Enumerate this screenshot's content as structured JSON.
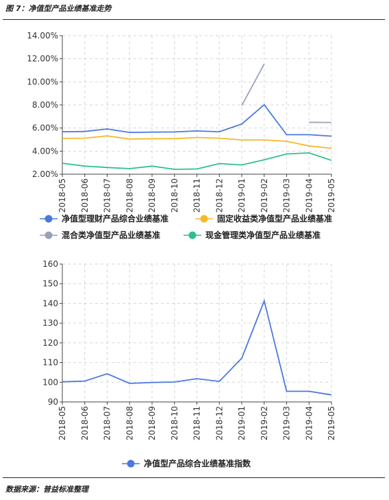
{
  "figure_title": "图 7：净值型产品业绩基准走势",
  "source_text": "数据来源：普益标准整理",
  "chart_data": [
    {
      "type": "line",
      "x": [
        "2018-05",
        "2018-06",
        "2018-07",
        "2018-08",
        "2018-09",
        "2018-10",
        "2018-11",
        "2018-12",
        "2019-01",
        "2019-02",
        "2019-03",
        "2019-04",
        "2019-05"
      ],
      "ylim": [
        2,
        14
      ],
      "yticks": [
        2,
        4,
        6,
        8,
        10,
        12,
        14
      ],
      "ytick_labels": [
        "2.00%",
        "4.00%",
        "6.00%",
        "8.00%",
        "10.00%",
        "12.00%",
        "14.00%"
      ],
      "grid": true,
      "legend_position": "bottom",
      "series": [
        {
          "name": "净值型理财产品综合业绩基准",
          "color": "#4a78e0",
          "values": [
            5.68,
            5.7,
            5.92,
            5.62,
            5.65,
            5.66,
            5.75,
            5.68,
            6.35,
            8.02,
            5.42,
            5.42,
            5.3
          ]
        },
        {
          "name": "固定收益类净值型产品业绩基准",
          "color": "#f7b92a",
          "values": [
            5.1,
            5.12,
            5.32,
            5.05,
            5.07,
            5.08,
            5.18,
            5.12,
            4.97,
            4.97,
            4.85,
            4.45,
            4.25
          ]
        },
        {
          "name": "混合类净值型产品业绩基准",
          "color": "#9aa3b5",
          "values": [
            null,
            null,
            null,
            null,
            null,
            null,
            null,
            null,
            7.95,
            11.55,
            null,
            6.5,
            6.48
          ]
        },
        {
          "name": "现金管理类净值型产品业绩基准",
          "color": "#2cc18f",
          "values": [
            2.95,
            2.7,
            2.58,
            2.48,
            2.7,
            2.42,
            2.45,
            2.92,
            2.8,
            3.25,
            3.75,
            3.85,
            3.2
          ]
        }
      ]
    },
    {
      "type": "line",
      "x": [
        "2018-05",
        "2018-06",
        "2018-07",
        "2018-08",
        "2018-09",
        "2018-10",
        "2018-11",
        "2018-12",
        "2019-01",
        "2019-02",
        "2019-03",
        "2019-04",
        "2019-05"
      ],
      "ylim": [
        90,
        160
      ],
      "yticks": [
        90,
        100,
        110,
        120,
        130,
        140,
        150,
        160
      ],
      "ytick_labels": [
        "90",
        "100",
        "110",
        "120",
        "130",
        "140",
        "150",
        "160"
      ],
      "grid": true,
      "legend_position": "bottom",
      "series": [
        {
          "name": "净值型产品综合业绩基准指数",
          "color": "#4a78e0",
          "values": [
            100.2,
            100.6,
            104.3,
            99.4,
            99.9,
            100.1,
            101.8,
            100.4,
            112.2,
            141.3,
            95.4,
            95.4,
            93.6
          ]
        }
      ]
    }
  ]
}
